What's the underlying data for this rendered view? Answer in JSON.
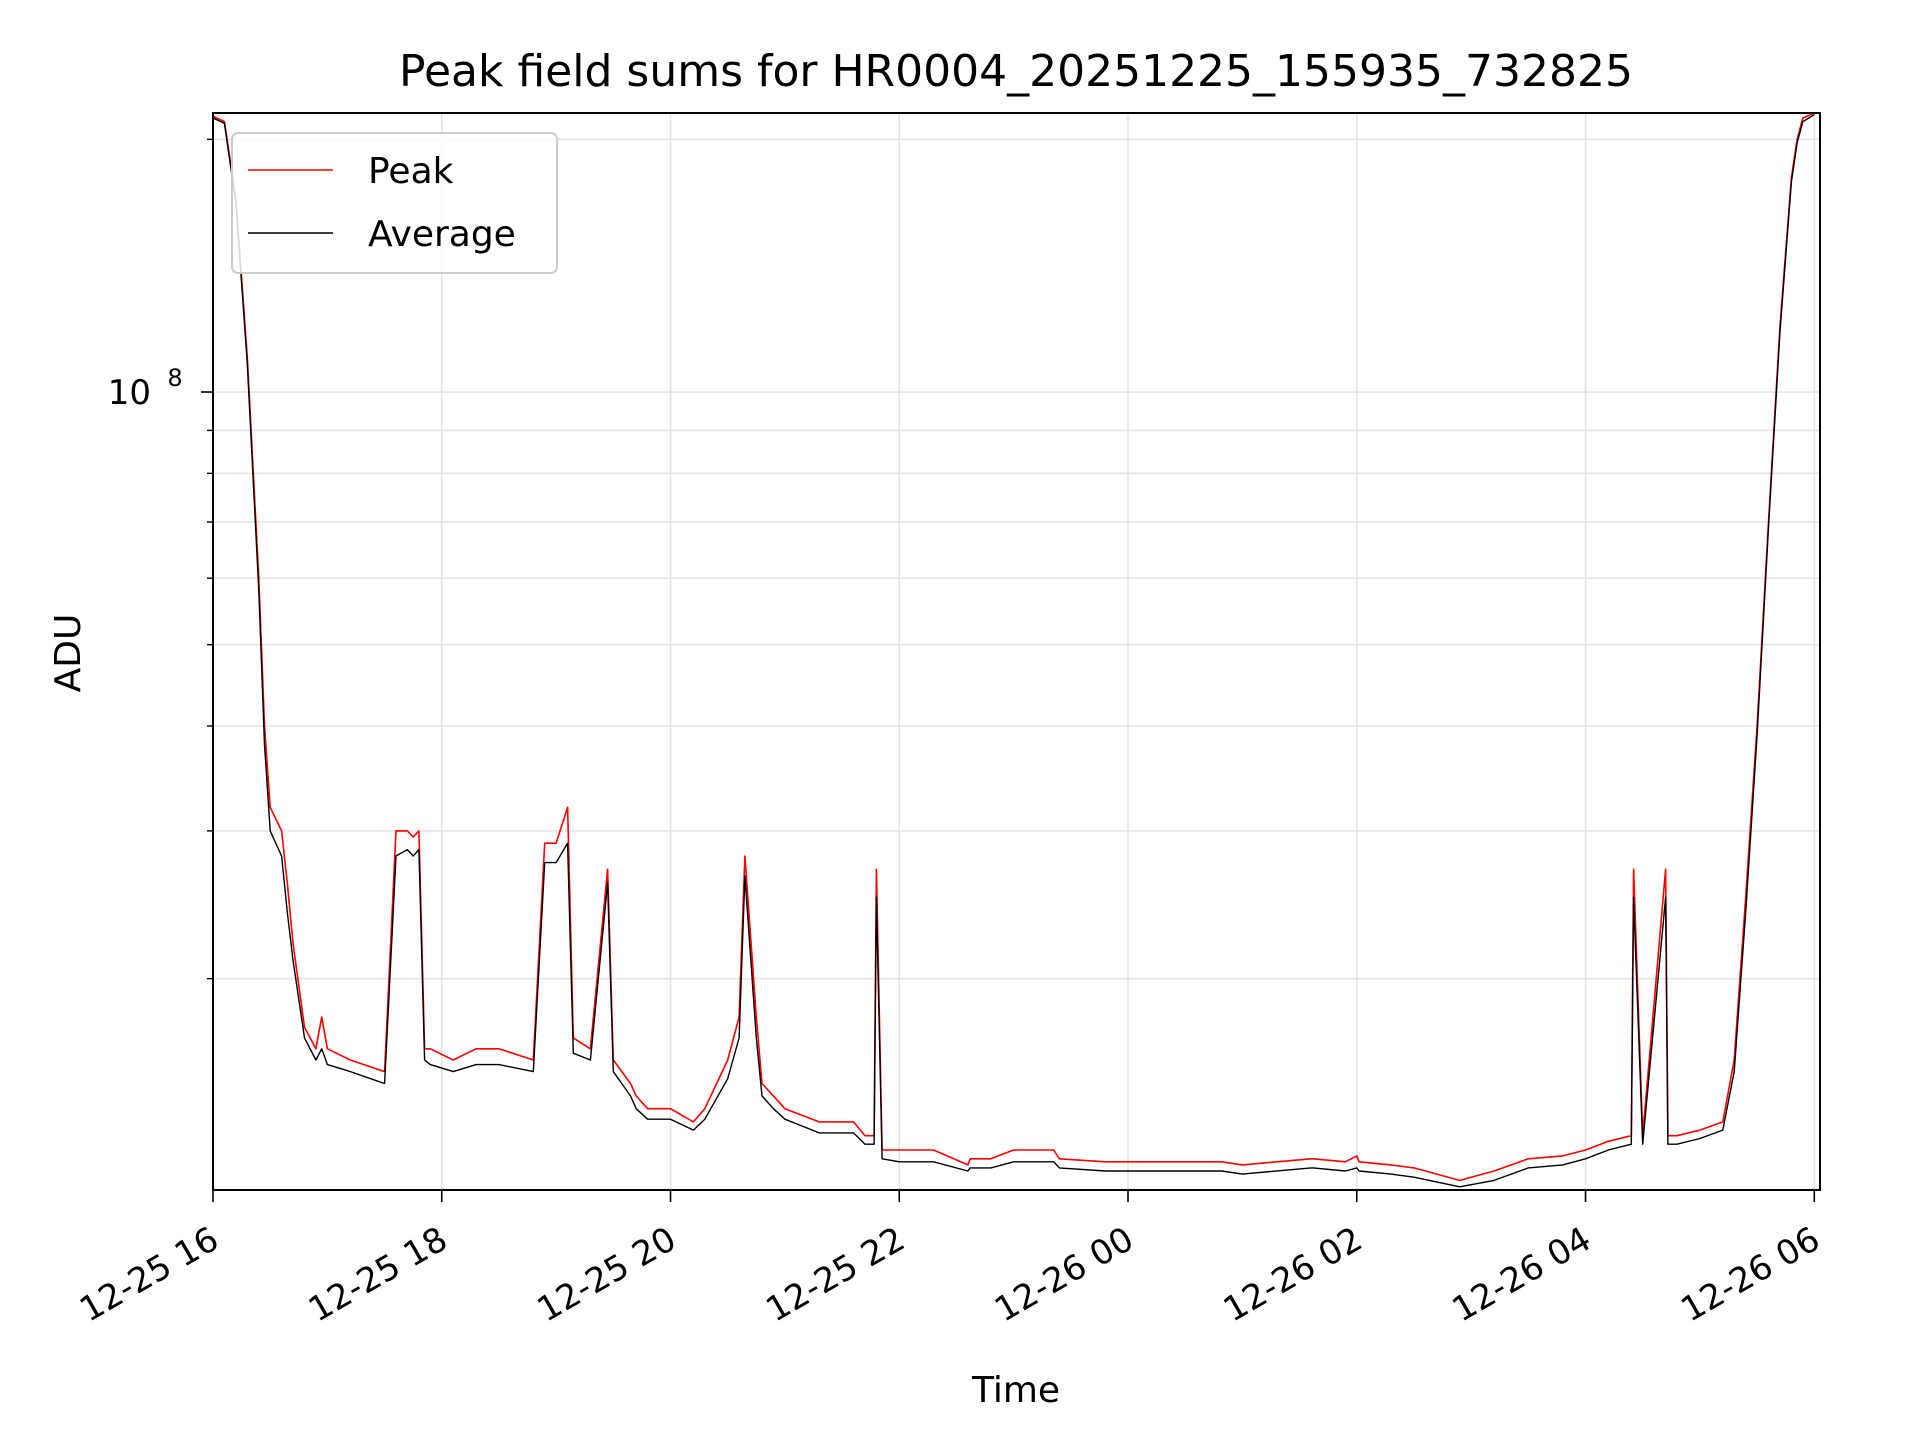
{
  "chart_data": {
    "type": "line",
    "title": "Peak field sums for HR0004_20251225_155935_732825",
    "xlabel": "Time",
    "ylabel": "ADU",
    "yscale": "log",
    "ylim": [
      11200000,
      215000000
    ],
    "xlim_hours": [
      0,
      14.05
    ],
    "x_unit": "hours since 12-25 16:00",
    "grid": true,
    "legend_position": "top-left",
    "x_ticks": [
      {
        "label": "12-25 16",
        "hour": 0
      },
      {
        "label": "12-25 18",
        "hour": 2
      },
      {
        "label": "12-25 20",
        "hour": 4
      },
      {
        "label": "12-25 22",
        "hour": 6
      },
      {
        "label": "12-26 00",
        "hour": 8
      },
      {
        "label": "12-26 02",
        "hour": 10
      },
      {
        "label": "12-26 04",
        "hour": 12
      },
      {
        "label": "12-26 06",
        "hour": 14
      }
    ],
    "y_major_ticks": [
      {
        "label": "10",
        "exponent": "8",
        "value": 100000000
      }
    ],
    "y_minor_ticks": [
      20000000,
      30000000,
      40000000,
      50000000,
      60000000,
      70000000,
      80000000,
      90000000,
      200000000
    ],
    "series": [
      {
        "name": "Peak",
        "color": "#ff0000",
        "x": [
          0,
          0.1,
          0.2,
          0.3,
          0.4,
          0.45,
          0.5,
          0.6,
          0.65,
          0.7,
          0.8,
          0.9,
          0.95,
          1.0,
          1.2,
          1.5,
          1.6,
          1.7,
          1.75,
          1.8,
          1.85,
          1.9,
          2.1,
          2.3,
          2.5,
          2.8,
          2.9,
          3.0,
          3.1,
          3.15,
          3.3,
          3.45,
          3.5,
          3.65,
          3.7,
          3.8,
          4.0,
          4.2,
          4.3,
          4.5,
          4.6,
          4.65,
          4.75,
          4.8,
          4.9,
          5.0,
          5.3,
          5.6,
          5.7,
          5.78,
          5.8,
          5.85,
          6.0,
          6.3,
          6.6,
          6.62,
          6.8,
          7.0,
          7.35,
          7.4,
          7.8,
          8.2,
          8.8,
          8.82,
          9.0,
          9.6,
          9.62,
          9.9,
          10.0,
          10.02,
          10.3,
          10.5,
          10.9,
          11.2,
          11.5,
          11.8,
          12.0,
          12.2,
          12.4,
          12.42,
          12.5,
          12.7,
          12.72,
          12.8,
          13.0,
          13.2,
          13.3,
          13.4,
          13.5,
          13.6,
          13.7,
          13.8,
          13.85,
          13.9,
          14.0
        ],
        "values": [
          213000000,
          210000000,
          170000000,
          110000000,
          60000000,
          40000000,
          32000000,
          30000000,
          26000000,
          22000000,
          17500000,
          16500000,
          18000000,
          16500000,
          16000000,
          15500000,
          30000000,
          30000000,
          29500000,
          30000000,
          16500000,
          16500000,
          16000000,
          16500000,
          16500000,
          16000000,
          29000000,
          29000000,
          32000000,
          17000000,
          16500000,
          27000000,
          16000000,
          15000000,
          14500000,
          14000000,
          14000000,
          13500000,
          14000000,
          16000000,
          18000000,
          28000000,
          18000000,
          15000000,
          14500000,
          14000000,
          13500000,
          13500000,
          13000000,
          13000000,
          27000000,
          12500000,
          12500000,
          12500000,
          12000000,
          12200000,
          12200000,
          12500000,
          12500000,
          12200000,
          12100000,
          12100000,
          12100000,
          12100000,
          12000000,
          12200000,
          12200000,
          12100000,
          12300000,
          12100000,
          12000000,
          11900000,
          11500000,
          11800000,
          12200000,
          12300000,
          12500000,
          12800000,
          13000000,
          27000000,
          13000000,
          27000000,
          13000000,
          13000000,
          13200000,
          13500000,
          16000000,
          25000000,
          40000000,
          70000000,
          120000000,
          180000000,
          200000000,
          212000000,
          215000000
        ]
      },
      {
        "name": "Average",
        "color": "#000000",
        "x": [
          0,
          0.1,
          0.2,
          0.3,
          0.4,
          0.45,
          0.5,
          0.6,
          0.65,
          0.7,
          0.8,
          0.9,
          0.95,
          1.0,
          1.2,
          1.5,
          1.6,
          1.7,
          1.75,
          1.8,
          1.85,
          1.9,
          2.1,
          2.3,
          2.5,
          2.8,
          2.9,
          3.0,
          3.1,
          3.15,
          3.3,
          3.45,
          3.5,
          3.65,
          3.7,
          3.8,
          4.0,
          4.2,
          4.3,
          4.5,
          4.6,
          4.65,
          4.75,
          4.8,
          4.9,
          5.0,
          5.3,
          5.6,
          5.7,
          5.78,
          5.8,
          5.85,
          6.0,
          6.3,
          6.6,
          6.62,
          6.8,
          7.0,
          7.35,
          7.4,
          7.8,
          8.2,
          8.8,
          8.82,
          9.0,
          9.6,
          9.62,
          9.9,
          10.0,
          10.02,
          10.3,
          10.5,
          10.9,
          11.2,
          11.5,
          11.8,
          12.0,
          12.2,
          12.4,
          12.42,
          12.5,
          12.7,
          12.72,
          12.8,
          13.0,
          13.2,
          13.3,
          13.4,
          13.5,
          13.6,
          13.7,
          13.8,
          13.85,
          13.9,
          14.0
        ],
        "values": [
          212000000,
          209000000,
          168000000,
          108000000,
          58000000,
          38000000,
          30000000,
          28000000,
          24000000,
          21000000,
          17000000,
          16000000,
          16500000,
          15800000,
          15500000,
          15000000,
          28000000,
          28500000,
          28000000,
          28500000,
          16000000,
          15800000,
          15500000,
          15800000,
          15800000,
          15500000,
          27500000,
          27500000,
          29000000,
          16300000,
          16000000,
          26000000,
          15500000,
          14500000,
          14000000,
          13600000,
          13600000,
          13200000,
          13600000,
          15200000,
          17000000,
          26500000,
          17000000,
          14500000,
          14000000,
          13600000,
          13100000,
          13100000,
          12700000,
          12700000,
          25000000,
          12200000,
          12100000,
          12100000,
          11800000,
          11900000,
          11900000,
          12100000,
          12100000,
          11900000,
          11800000,
          11800000,
          11800000,
          11800000,
          11700000,
          11900000,
          11900000,
          11800000,
          11900000,
          11800000,
          11700000,
          11600000,
          11300000,
          11500000,
          11900000,
          12000000,
          12200000,
          12500000,
          12700000,
          25000000,
          12700000,
          25000000,
          12700000,
          12700000,
          12900000,
          13200000,
          15500000,
          24000000,
          39000000,
          69000000,
          118000000,
          178000000,
          198000000,
          210000000,
          214000000
        ]
      }
    ]
  }
}
